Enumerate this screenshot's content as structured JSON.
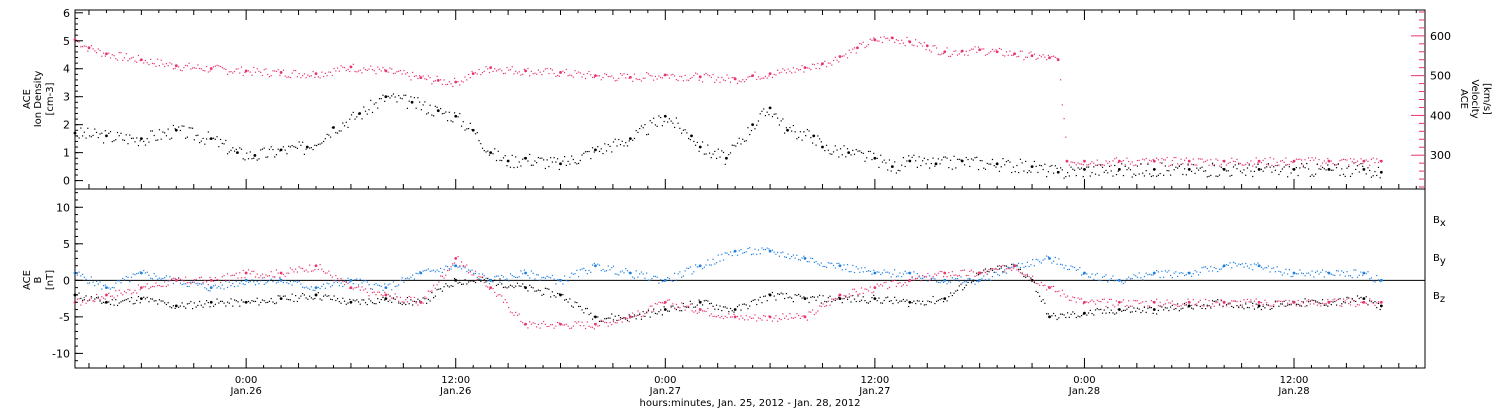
{
  "colors": {
    "black": "#000000",
    "pink": "#E8336B",
    "blue": "#1E7FE0"
  },
  "xlabel": "hours:minutes, Jan. 25, 2012 - Jan. 28, 2012",
  "x_ticks": [
    {
      "time": "0:00",
      "date": "Jan.26",
      "hour": 24
    },
    {
      "time": "12:00",
      "date": "Jan.26",
      "hour": 36
    },
    {
      "time": "0:00",
      "date": "Jan.27",
      "hour": 48
    },
    {
      "time": "12:00",
      "date": "Jan.27",
      "hour": 60
    },
    {
      "time": "0:00",
      "date": "Jan.28",
      "hour": 72
    },
    {
      "time": "12:00",
      "date": "Jan.28",
      "hour": 84
    }
  ],
  "top_panel": {
    "left_label": [
      "ACE",
      "Ion Density",
      "[cm-3]"
    ],
    "left_ticks": [
      "0",
      "1",
      "2",
      "3",
      "4",
      "5",
      "6"
    ],
    "right_label": [
      "ACE",
      "Velocity",
      "[km/s]"
    ],
    "right_ticks": [
      "300",
      "400",
      "500",
      "600"
    ]
  },
  "bottom_panel": {
    "left_label": [
      "ACE",
      "B",
      "[nT]"
    ],
    "left_ticks": [
      "10",
      "5",
      "0",
      "-5",
      "-10"
    ],
    "legend": [
      "B",
      "B",
      "B"
    ],
    "legend_subs": [
      "x",
      "y",
      "z"
    ]
  },
  "chart_data": [
    {
      "type": "scatter",
      "xlim": [
        14.2,
        91.5
      ],
      "ylim_left": [
        -0.3,
        6.1
      ],
      "ylim_right": [
        215,
        665
      ],
      "series": [
        {
          "axis": "left",
          "color": "#000000",
          "unit": "cm-3",
          "hours": [
            14.2,
            16,
            18,
            20,
            22,
            23.5,
            24.5,
            26,
            27.5,
            29,
            30.5,
            32,
            33.5,
            35,
            36,
            37,
            38,
            39,
            40,
            42,
            44,
            46,
            48,
            49.5,
            50,
            51.5,
            53,
            54,
            55,
            56.5,
            57,
            58.5,
            60,
            61,
            62,
            63.5,
            65,
            67,
            69,
            70.5,
            72,
            74,
            76,
            78,
            80,
            82,
            84,
            86,
            88,
            89
          ],
          "values": [
            1.7,
            1.6,
            1.5,
            1.8,
            1.5,
            1.0,
            0.9,
            1.1,
            1.2,
            1.9,
            2.4,
            3.0,
            2.8,
            2.5,
            2.3,
            1.8,
            1.0,
            0.7,
            0.8,
            0.6,
            1.1,
            1.5,
            2.3,
            1.6,
            1.2,
            0.8,
            2.0,
            2.6,
            1.8,
            1.6,
            1.2,
            1.0,
            0.8,
            0.5,
            0.7,
            0.6,
            0.7,
            0.6,
            0.5,
            0.3,
            0.4,
            0.4,
            0.4,
            0.4,
            0.4,
            0.4,
            0.4,
            0.4,
            0.4,
            0.3
          ]
        },
        {
          "axis": "right",
          "color": "#E8336B",
          "unit": "km/s",
          "hours": [
            14.2,
            15,
            16,
            18,
            20,
            22,
            24,
            26,
            28,
            30,
            32,
            34,
            35,
            36,
            37,
            38,
            40,
            42,
            44,
            46,
            48,
            50,
            52,
            53,
            54,
            56,
            57,
            58,
            59,
            60,
            61,
            62,
            63,
            64,
            65,
            66,
            67,
            68,
            69,
            70,
            70.5,
            71,
            72,
            74,
            76,
            78,
            80,
            82,
            84,
            86,
            88,
            89
          ],
          "values": [
            590,
            570,
            555,
            540,
            525,
            518,
            512,
            508,
            505,
            522,
            512,
            495,
            488,
            484,
            505,
            520,
            512,
            508,
            500,
            496,
            502,
            497,
            492,
            500,
            505,
            520,
            530,
            548,
            570,
            590,
            595,
            585,
            575,
            560,
            562,
            565,
            560,
            555,
            550,
            545,
            540,
            285,
            285,
            285,
            285,
            285,
            285,
            285,
            285,
            285,
            285,
            285
          ]
        }
      ]
    },
    {
      "type": "scatter",
      "xlim": [
        14.2,
        91.5
      ],
      "ylim": [
        -12,
        12.5
      ],
      "series": [
        {
          "name": "Bx",
          "color": "#000000",
          "hours": [
            14.2,
            16,
            18,
            20,
            22,
            24,
            26,
            28,
            30,
            32,
            34,
            36,
            38,
            40,
            42,
            44,
            46,
            48,
            50,
            52,
            54,
            56,
            58,
            60,
            62,
            64,
            66,
            68,
            69,
            70,
            72,
            74,
            76,
            78,
            80,
            82,
            84,
            86,
            88,
            89
          ],
          "values": [
            -2,
            -3,
            -2.5,
            -3.5,
            -3,
            -3,
            -2.5,
            -2,
            -3,
            -2.5,
            -3,
            0,
            0,
            -1,
            -2,
            -5,
            -5,
            -4,
            -3,
            -4,
            -2,
            -2.5,
            -2.5,
            -2.5,
            -3,
            -2.5,
            1,
            2,
            0,
            -5,
            -4.5,
            -4,
            -4,
            -3.5,
            -3,
            -3.5,
            -3,
            -3,
            -2.5,
            -3.5
          ]
        },
        {
          "name": "By",
          "color": "#1E7FE0",
          "hours": [
            14.2,
            16,
            18,
            20,
            22,
            24,
            26,
            28,
            30,
            32,
            34,
            36,
            38,
            40,
            42,
            44,
            46,
            48,
            50,
            52,
            54,
            56,
            58,
            60,
            62,
            64,
            66,
            68,
            70,
            72,
            74,
            76,
            78,
            80,
            82,
            84,
            86,
            88,
            89
          ],
          "values": [
            1,
            -1,
            1,
            0,
            -1,
            0,
            0,
            -1,
            0,
            -1,
            1,
            2,
            0,
            1,
            0,
            2,
            1,
            0,
            2,
            4,
            4,
            3,
            2,
            1,
            1,
            0,
            0,
            2,
            3,
            1,
            0,
            1,
            1,
            2,
            2,
            1,
            1,
            1,
            0
          ]
        },
        {
          "name": "Bz",
          "color": "#E8336B",
          "hours": [
            14.2,
            16,
            18,
            20,
            22,
            24,
            26,
            28,
            30,
            32,
            34,
            36,
            38,
            40,
            42,
            44,
            46,
            48,
            50,
            52,
            54,
            56,
            58,
            60,
            62,
            64,
            66,
            68,
            70,
            72,
            74,
            76,
            78,
            80,
            82,
            84,
            86,
            88,
            89
          ],
          "values": [
            -3,
            -2,
            -1,
            0,
            0,
            1,
            1,
            2,
            -1,
            -2,
            -3,
            3,
            -1,
            -6,
            -6,
            -6,
            -5,
            -3,
            -4,
            -5,
            -5,
            -5,
            -2,
            -1,
            0,
            1,
            1,
            2,
            -1,
            -3,
            -3,
            -3,
            -3,
            -3,
            -3,
            -3,
            -3,
            -3,
            -3
          ]
        }
      ]
    }
  ]
}
